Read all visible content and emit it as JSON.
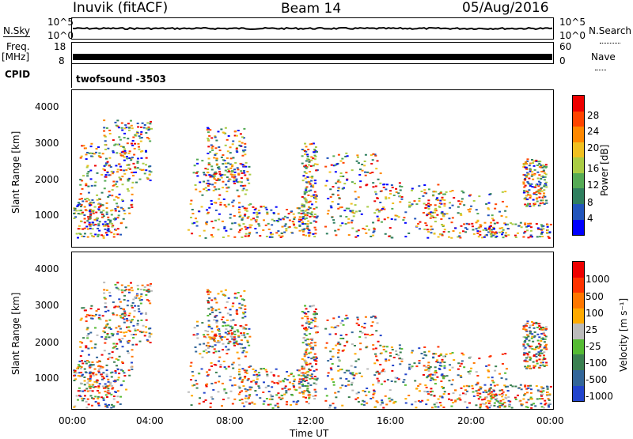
{
  "header": {
    "station": "Inuvik (fitACF)",
    "beam": "Beam 14",
    "date": "05/Aug/2016"
  },
  "left_labels": {
    "nsky": "N.Sky",
    "freq": "Freq.",
    "freq_unit": "[MHz]",
    "cpid": "CPID"
  },
  "right_labels": {
    "nsearch": "N.Search",
    "nave": "Nave"
  },
  "cpid_value": "twofsound -3503",
  "chart_data": [
    {
      "type": "line",
      "name": "noise",
      "y_ticks_left": [
        "10^5",
        "10^0"
      ],
      "y_ticks_right": [
        "10^5",
        "10^0"
      ]
    },
    {
      "type": "line",
      "name": "freq-nave",
      "y_ticks_left": [
        "18",
        "8"
      ],
      "y_ticks_right": [
        "60",
        "0"
      ]
    },
    {
      "type": "heatmap",
      "name": "power",
      "ylabel": "Slant Range [km]",
      "yticks": [
        "4000",
        "3000",
        "2000",
        "1000"
      ],
      "xticks": [
        "00:00",
        "04:00",
        "08:00",
        "12:00",
        "16:00",
        "20:00",
        "00:00"
      ],
      "colorbar_label": "Power [dB]",
      "colorbar_ticks": [
        "28",
        "24",
        "20",
        "16",
        "12",
        "8",
        "4"
      ],
      "colors": [
        "#0000ff",
        "#2255bb",
        "#2f7f5f",
        "#55aa55",
        "#aacc44",
        "#f0c020",
        "#ff8800",
        "#ff4400",
        "#ee0000"
      ]
    },
    {
      "type": "heatmap",
      "name": "velocity",
      "ylabel": "Slant Range [km]",
      "yticks": [
        "4000",
        "3000",
        "2000",
        "1000"
      ],
      "xticks": [
        "00:00",
        "04:00",
        "08:00",
        "12:00",
        "16:00",
        "20:00",
        "00:00"
      ],
      "xlabel": "Time UT",
      "colorbar_label": "Velocity [m s⁻¹]",
      "colorbar_ticks": [
        "1000",
        "500",
        "100",
        "25",
        "-25",
        "-100",
        "-500",
        "-1000"
      ],
      "colors": [
        "#2244cc",
        "#336699",
        "#3a8050",
        "#55bb33",
        "#bbbbbb",
        "#ffaa00",
        "#ff7700",
        "#ff3300",
        "#ee0000"
      ]
    }
  ]
}
